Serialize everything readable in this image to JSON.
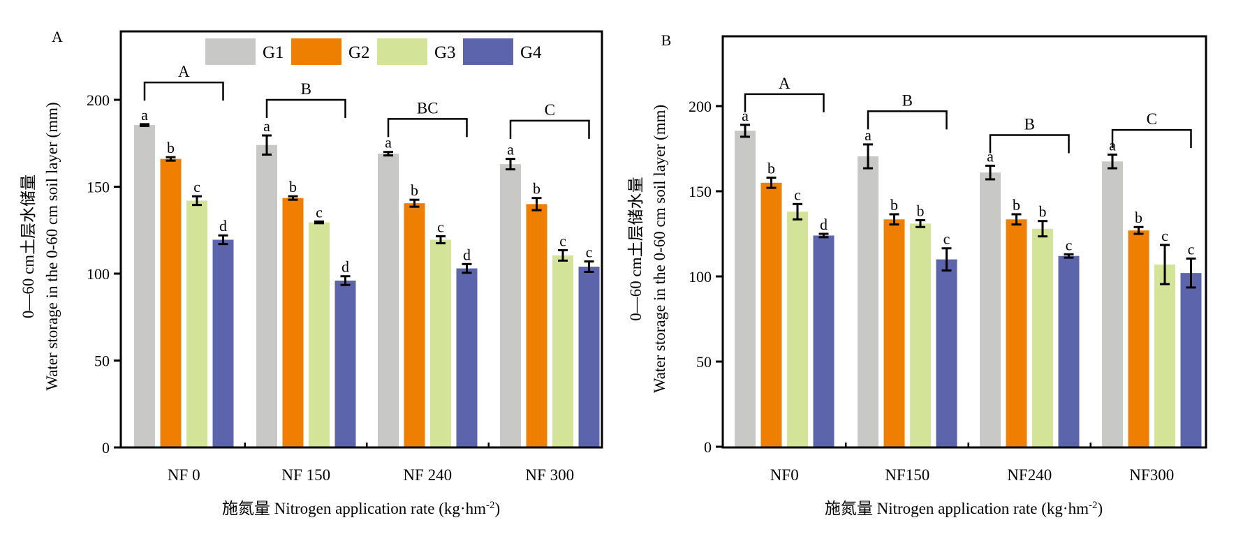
{
  "chart_data": [
    {
      "panel_label": "A",
      "type": "bar",
      "title": "",
      "xlabel": "施氮量 Nitrogen application rate (kg·hm-2)",
      "xlabel_main": "施氮量 Nitrogen application rate (kg·hm",
      "xlabel_sup": "-2",
      "xlabel_end": ")",
      "ylabel_cn": "0—60 cm土层水储量",
      "ylabel_en": "Water storage in the 0-60 cm soil layer (mm)",
      "ylim": [
        0,
        240
      ],
      "yticks": [
        0,
        50,
        100,
        150,
        200
      ],
      "grid": false,
      "legend": {
        "placement": "top-center",
        "entries": [
          "G1",
          "G2",
          "G3",
          "G4"
        ]
      },
      "categories": [
        "NF 0",
        "NF 150",
        "NF 240",
        "NF 300"
      ],
      "series": [
        {
          "name": "G1",
          "color": "#C8C8C6",
          "values": [
            185.5,
            174,
            169,
            163
          ],
          "errors": [
            0.5,
            5.5,
            1,
            3
          ],
          "letters": [
            "a",
            "a",
            "a",
            "a"
          ]
        },
        {
          "name": "G2",
          "color": "#EE7F00",
          "values": [
            166,
            143.5,
            140.5,
            140
          ],
          "errors": [
            1,
            1,
            2,
            3.5
          ],
          "letters": [
            "b",
            "b",
            "b",
            "b"
          ]
        },
        {
          "name": "G3",
          "color": "#D3E397",
          "values": [
            142,
            129.5,
            119.5,
            110.5
          ],
          "errors": [
            2.5,
            0.5,
            2,
            3
          ],
          "letters": [
            "c",
            "c",
            "c",
            "c"
          ]
        },
        {
          "name": "G4",
          "color": "#5C64AB",
          "values": [
            119.5,
            96,
            103,
            104
          ],
          "errors": [
            2.5,
            2.5,
            2.5,
            3
          ],
          "letters": [
            "d",
            "d",
            "d",
            "c"
          ]
        }
      ],
      "group_letters": [
        "A",
        "B",
        "BC",
        "C"
      ],
      "group_bracket_levels": [
        210,
        200,
        189,
        188
      ]
    },
    {
      "panel_label": "B",
      "type": "bar",
      "title": "",
      "xlabel": "施氮量 Nitrogen application rate (kg·hm-2)",
      "xlabel_main": "施氮量 Nitrogen application rate (kg·hm",
      "xlabel_sup": "-2",
      "xlabel_end": ")",
      "ylabel_cn": "0—60 cm土层储水量",
      "ylabel_en": "Water storage in the 0-60 cm soil layer (mm)",
      "ylim": [
        0,
        240
      ],
      "yticks": [
        0,
        50,
        100,
        150,
        200
      ],
      "grid": false,
      "legend": null,
      "categories": [
        "NF0",
        "NF150",
        "NF240",
        "NF300"
      ],
      "series": [
        {
          "name": "G1",
          "color": "#C8C8C6",
          "values": [
            185.5,
            170.5,
            161,
            167.5
          ],
          "errors": [
            3.5,
            7,
            4,
            4
          ],
          "letters": [
            "a",
            "a",
            "a",
            "a"
          ]
        },
        {
          "name": "G2",
          "color": "#EE7F00",
          "values": [
            155,
            133.5,
            133.5,
            127
          ],
          "errors": [
            3,
            3,
            3,
            2
          ],
          "letters": [
            "b",
            "b",
            "b",
            "b"
          ]
        },
        {
          "name": "G3",
          "color": "#D3E397",
          "values": [
            138,
            131,
            128,
            107
          ],
          "errors": [
            4.5,
            2,
            4.5,
            11.5
          ],
          "letters": [
            "c",
            "b",
            "b",
            "c"
          ]
        },
        {
          "name": "G4",
          "color": "#5C64AB",
          "values": [
            124,
            110,
            112,
            102
          ],
          "errors": [
            1,
            6.5,
            1,
            8.5
          ],
          "letters": [
            "d",
            "c",
            "c",
            "c"
          ]
        }
      ],
      "group_letters": [
        "A",
        "B",
        "B",
        "C"
      ],
      "group_bracket_levals_note": "",
      "group_bracket_levels": [
        207,
        197,
        183,
        186
      ]
    }
  ]
}
